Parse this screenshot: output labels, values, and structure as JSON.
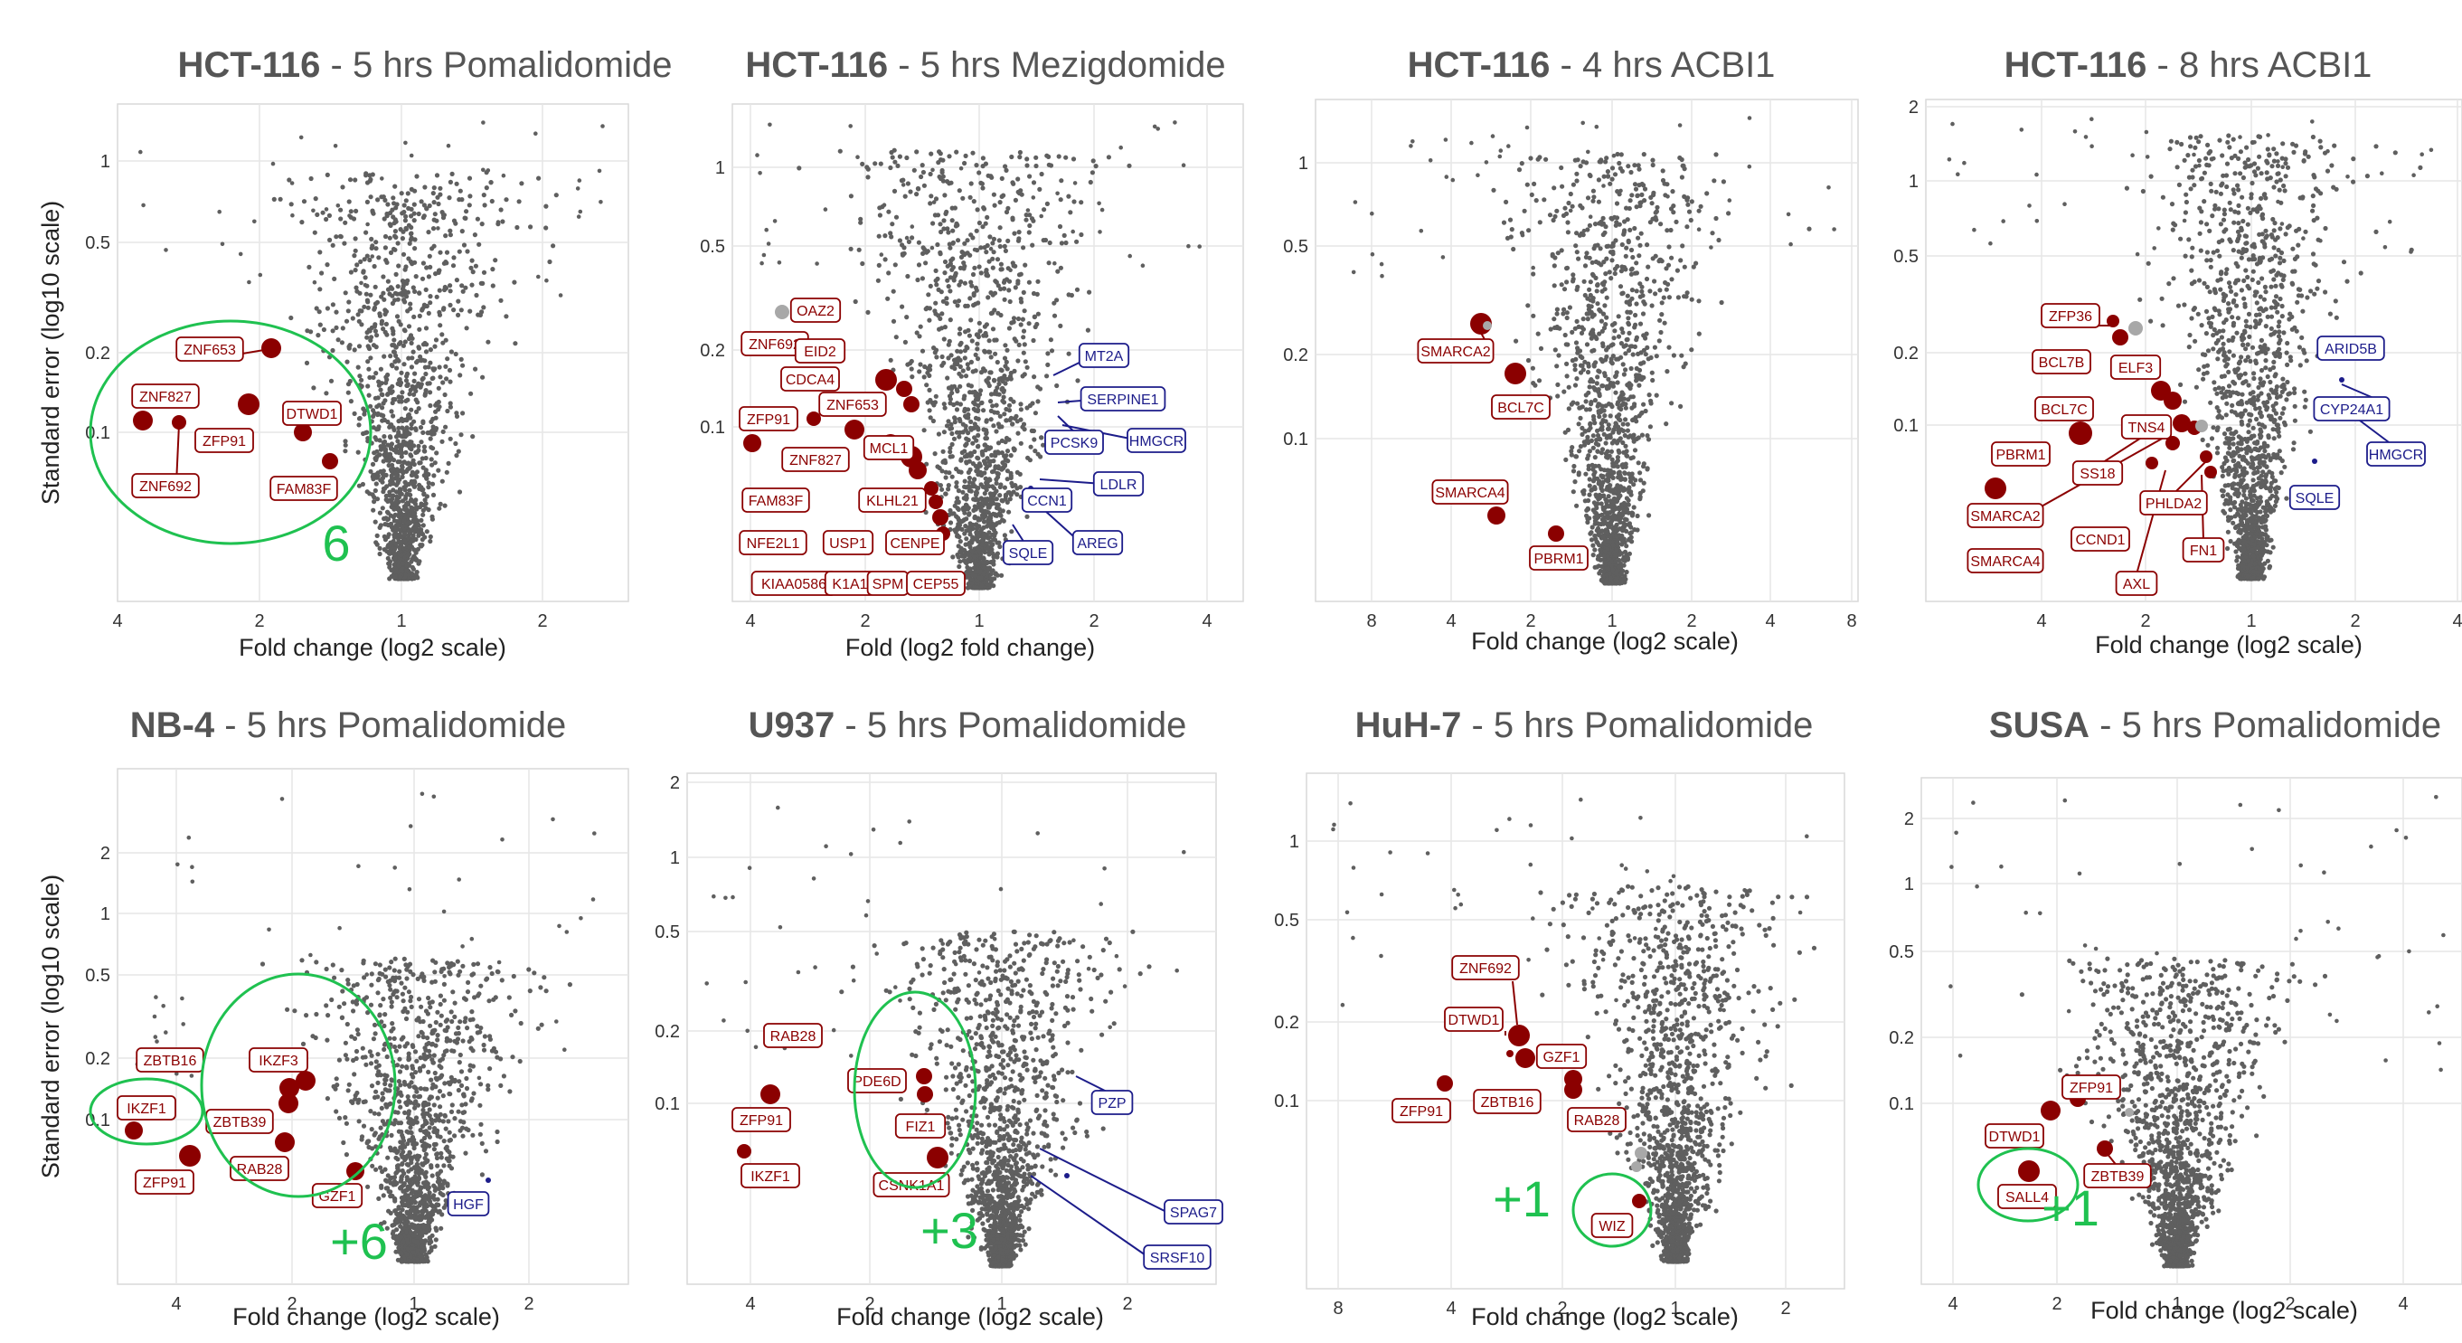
{
  "chart_data": [
    {
      "type": "scatter",
      "title_bold": "HCT-116",
      "title_rest": " - 5 hrs Pomalidomide",
      "xlabel": "Fold change (log2 scale)",
      "ylabel": "Standard error (log10 scale)",
      "xticks": [
        "4",
        "2",
        "1",
        "2"
      ],
      "yticks": [
        "1",
        "0.5",
        "0.2",
        "0.1"
      ],
      "count_label": "6",
      "labels": [
        {
          "text": "ZNF653",
          "color": "red"
        },
        {
          "text": "ZNF827",
          "color": "red"
        },
        {
          "text": "ZFP91",
          "color": "red"
        },
        {
          "text": "DTWD1",
          "color": "red"
        },
        {
          "text": "ZNF692",
          "color": "red"
        },
        {
          "text": "FAM83F",
          "color": "red"
        }
      ]
    },
    {
      "type": "scatter",
      "title_bold": "HCT-116",
      "title_rest": " - 5 hrs Mezigdomide",
      "xlabel": "Fold (log2 fold change)",
      "ylabel": "",
      "xticks": [
        "4",
        "2",
        "1",
        "2",
        "4"
      ],
      "yticks": [
        "1",
        "0.5",
        "0.2",
        "0.1"
      ],
      "count_label": "",
      "labels": [
        {
          "text": "OAZ2",
          "color": "red"
        },
        {
          "text": "ZNF692",
          "color": "red"
        },
        {
          "text": "EID2",
          "color": "red"
        },
        {
          "text": "CDCA4",
          "color": "red"
        },
        {
          "text": "ZNF653",
          "color": "red"
        },
        {
          "text": "ZFP91",
          "color": "red"
        },
        {
          "text": "ZNF827",
          "color": "red"
        },
        {
          "text": "MCL1",
          "color": "red"
        },
        {
          "text": "FAM83F",
          "color": "red"
        },
        {
          "text": "KLHL21",
          "color": "red"
        },
        {
          "text": "NFE2L1",
          "color": "red"
        },
        {
          "text": "USP1",
          "color": "red"
        },
        {
          "text": "CENPE",
          "color": "red"
        },
        {
          "text": "KIAA0586",
          "color": "red"
        },
        {
          "text": "K1A1",
          "color": "red"
        },
        {
          "text": "SPM",
          "color": "red"
        },
        {
          "text": "CEP55",
          "color": "red"
        },
        {
          "text": "MT2A",
          "color": "blue"
        },
        {
          "text": "SERPINE1",
          "color": "blue"
        },
        {
          "text": "PCSK9",
          "color": "blue"
        },
        {
          "text": "HMGCR",
          "color": "blue"
        },
        {
          "text": "LDLR",
          "color": "blue"
        },
        {
          "text": "CCN1",
          "color": "blue"
        },
        {
          "text": "AREG",
          "color": "blue"
        },
        {
          "text": "SQLE",
          "color": "blue"
        }
      ]
    },
    {
      "type": "scatter",
      "title_bold": "HCT-116",
      "title_rest": " - 4 hrs ACBI1",
      "xlabel": "Fold change (log2 scale)",
      "ylabel": "",
      "xticks": [
        "8",
        "4",
        "2",
        "1",
        "2",
        "4",
        "8"
      ],
      "yticks": [
        "1",
        "0.5",
        "0.2",
        "0.1"
      ],
      "count_label": "",
      "labels": [
        {
          "text": "SMARCA2",
          "color": "red"
        },
        {
          "text": "BCL7C",
          "color": "red"
        },
        {
          "text": "SMARCA4",
          "color": "red"
        },
        {
          "text": "PBRM1",
          "color": "red"
        }
      ]
    },
    {
      "type": "scatter",
      "title_bold": "HCT-116",
      "title_rest": " - 8 hrs ACBI1",
      "xlabel": "Fold change (log2 scale)",
      "ylabel": "",
      "xticks": [
        "4",
        "2",
        "1",
        "2",
        "4"
      ],
      "yticks": [
        "2",
        "1",
        "0.5",
        "0.2",
        "0.1"
      ],
      "count_label": "",
      "labels": [
        {
          "text": "ZFP36",
          "color": "red"
        },
        {
          "text": "BCL7B",
          "color": "red"
        },
        {
          "text": "ELF3",
          "color": "red"
        },
        {
          "text": "BCL7C",
          "color": "red"
        },
        {
          "text": "TNS4",
          "color": "red"
        },
        {
          "text": "PBRM1",
          "color": "red"
        },
        {
          "text": "SS18",
          "color": "red"
        },
        {
          "text": "SMARCA2",
          "color": "red"
        },
        {
          "text": "PHLDA2",
          "color": "red"
        },
        {
          "text": "CCND1",
          "color": "red"
        },
        {
          "text": "FN1",
          "color": "red"
        },
        {
          "text": "SMARCA4",
          "color": "red"
        },
        {
          "text": "AXL",
          "color": "red"
        },
        {
          "text": "ARID5B",
          "color": "blue"
        },
        {
          "text": "CYP24A1",
          "color": "blue"
        },
        {
          "text": "HMGCR",
          "color": "blue"
        },
        {
          "text": "SQLE",
          "color": "blue"
        }
      ]
    },
    {
      "type": "scatter",
      "title_bold": "NB-4",
      "title_rest": " - 5 hrs Pomalidomide",
      "xlabel": "Fold change (log2 scale)",
      "ylabel": "Standard error (log10 scale)",
      "xticks": [
        "4",
        "2",
        "1",
        "2"
      ],
      "yticks": [
        "2",
        "1",
        "0.5",
        "0.2",
        "0.1"
      ],
      "count_label": "+6",
      "labels": [
        {
          "text": "ZBTB16",
          "color": "red"
        },
        {
          "text": "IKZF3",
          "color": "red"
        },
        {
          "text": "IKZF1",
          "color": "red"
        },
        {
          "text": "ZBTB39",
          "color": "red"
        },
        {
          "text": "ZFP91",
          "color": "red"
        },
        {
          "text": "RAB28",
          "color": "red"
        },
        {
          "text": "GZF1",
          "color": "red"
        },
        {
          "text": "HGF",
          "color": "blue"
        }
      ]
    },
    {
      "type": "scatter",
      "title_bold": "U937",
      "title_rest": " - 5 hrs Pomalidomide",
      "xlabel": "Fold change (log2 scale)",
      "ylabel": "",
      "xticks": [
        "4",
        "2",
        "1",
        "2"
      ],
      "yticks": [
        "2",
        "1",
        "0.5",
        "0.2",
        "0.1"
      ],
      "count_label": "+3",
      "labels": [
        {
          "text": "RAB28",
          "color": "red"
        },
        {
          "text": "PDE6D",
          "color": "red"
        },
        {
          "text": "ZFP91",
          "color": "red"
        },
        {
          "text": "FIZ1",
          "color": "red"
        },
        {
          "text": "IKZF1",
          "color": "red"
        },
        {
          "text": "CSNK1A1",
          "color": "red"
        },
        {
          "text": "PZP",
          "color": "blue"
        },
        {
          "text": "SPAG7",
          "color": "blue"
        },
        {
          "text": "SRSF10",
          "color": "blue"
        }
      ]
    },
    {
      "type": "scatter",
      "title_bold": "HuH-7",
      "title_rest": " - 5 hrs Pomalidomide",
      "xlabel": "Fold change (log2 scale)",
      "ylabel": "",
      "xticks": [
        "8",
        "4",
        "2",
        "1",
        "2"
      ],
      "yticks": [
        "1",
        "0.5",
        "0.2",
        "0.1"
      ],
      "count_label": "+1",
      "labels": [
        {
          "text": "ZNF692",
          "color": "red"
        },
        {
          "text": "DTWD1",
          "color": "red"
        },
        {
          "text": "GZF1",
          "color": "red"
        },
        {
          "text": "ZFP91",
          "color": "red"
        },
        {
          "text": "ZBTB16",
          "color": "red"
        },
        {
          "text": "RAB28",
          "color": "red"
        },
        {
          "text": "WIZ",
          "color": "red"
        }
      ]
    },
    {
      "type": "scatter",
      "title_bold": "SUSA",
      "title_rest": " - 5 hrs Pomalidomide",
      "xlabel": "Fold change (log2 scale)",
      "ylabel": "",
      "xticks": [
        "4",
        "2",
        "1",
        "2",
        "4"
      ],
      "yticks": [
        "2",
        "1",
        "0.5",
        "0.2",
        "0.1"
      ],
      "count_label": "+1",
      "labels": [
        {
          "text": "ZFP91",
          "color": "red"
        },
        {
          "text": "DTWD1",
          "color": "red"
        },
        {
          "text": "ZBTB39",
          "color": "red"
        },
        {
          "text": "SALL4",
          "color": "red"
        }
      ]
    }
  ],
  "colors": {
    "cloud": "#5f5f5f",
    "highlight_red": "#8b0000",
    "highlight_blue": "#1c1c8a",
    "circle": "#1fc150",
    "grid": "#e6e6e6"
  }
}
